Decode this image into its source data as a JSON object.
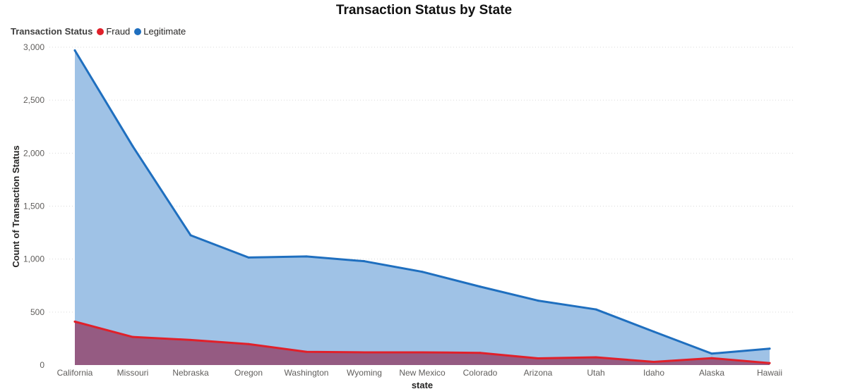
{
  "chart_data": {
    "type": "area",
    "title": "Transaction Status by State",
    "xlabel": "state",
    "ylabel": "Count of Transaction Status",
    "legend_title": "Transaction Status",
    "legend_position": "top-left",
    "grid": true,
    "ylim": [
      0,
      3000
    ],
    "yticks": [
      "0",
      "500",
      "1,000",
      "1,500",
      "2,000",
      "2,500",
      "3,000"
    ],
    "categories": [
      "California",
      "Missouri",
      "Nebraska",
      "Oregon",
      "Washington",
      "Wyoming",
      "New Mexico",
      "Colorado",
      "Arizona",
      "Utah",
      "Idaho",
      "Alaska",
      "Hawaii"
    ],
    "series": [
      {
        "name": "Fraud",
        "color": "#e0202a",
        "fill": "#955b82",
        "values": [
          410,
          265,
          237,
          198,
          125,
          120,
          120,
          115,
          63,
          73,
          30,
          65,
          18
        ]
      },
      {
        "name": "Legitimate",
        "color": "#1f6fbf",
        "fill": "#9fc2e6",
        "values": [
          2970,
          2065,
          1225,
          1015,
          1025,
          980,
          880,
          740,
          608,
          525,
          315,
          108,
          155
        ]
      }
    ]
  }
}
